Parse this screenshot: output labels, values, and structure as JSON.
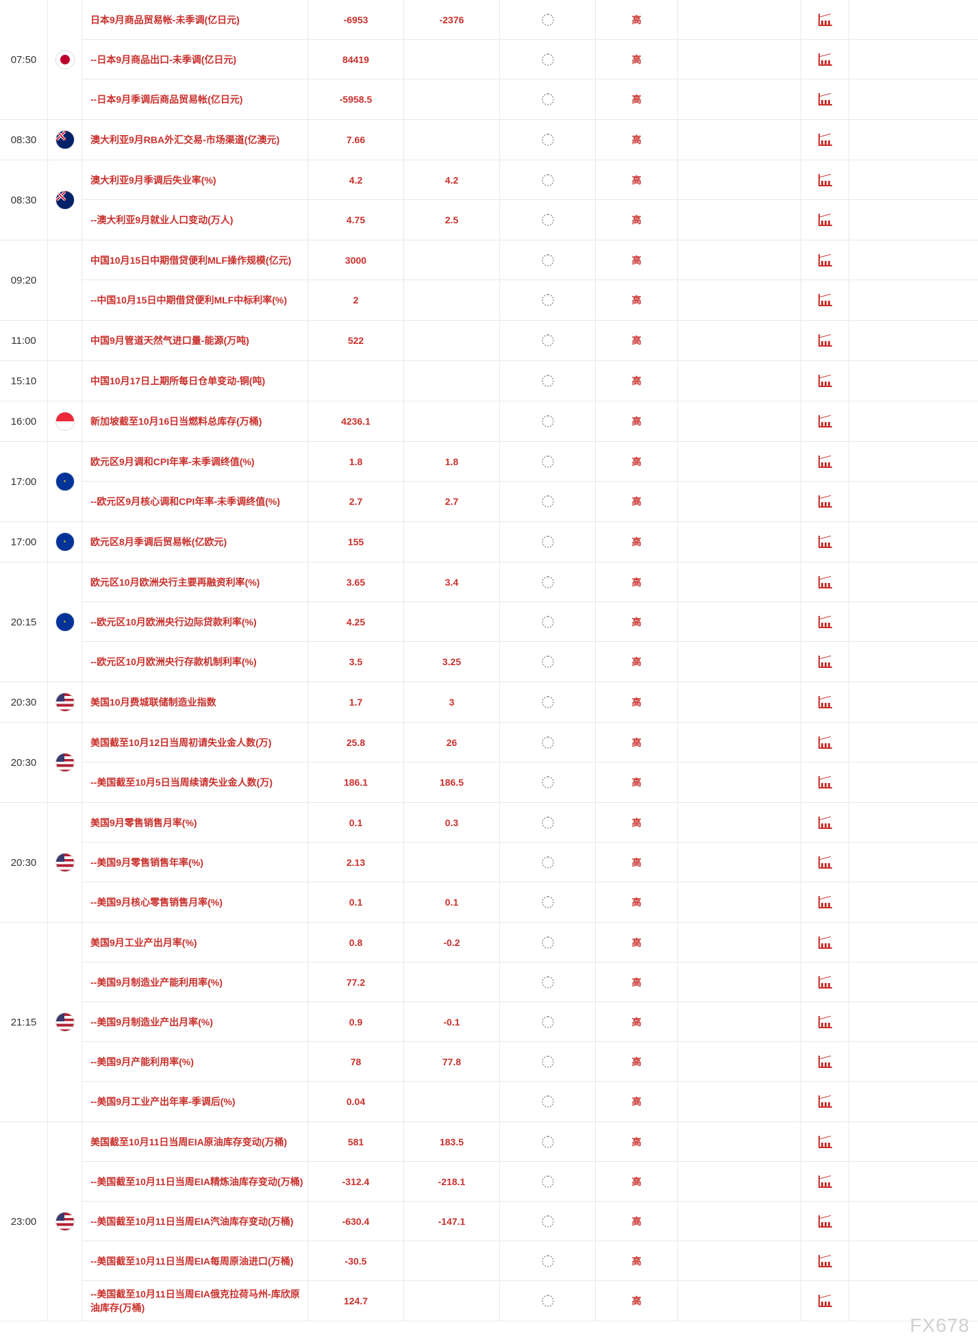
{
  "watermark": "FX678",
  "level_label": "高",
  "groups": [
    {
      "time": "07:50",
      "flag": "jp",
      "rows": [
        {
          "desc": "日本9月商品贸易帐-未季调(亿日元)",
          "v1": "-6953",
          "v2": "-2376"
        },
        {
          "desc": "--日本9月商品出口-未季调(亿日元)",
          "v1": "84419",
          "v2": ""
        },
        {
          "desc": "--日本9月季调后商品贸易帐(亿日元)",
          "v1": "-5958.5",
          "v2": ""
        }
      ]
    },
    {
      "time": "08:30",
      "flag": "au",
      "rows": [
        {
          "desc": "澳大利亚9月RBA外汇交易-市场渠道(亿澳元)",
          "v1": "7.66",
          "v2": ""
        }
      ]
    },
    {
      "time": "08:30",
      "flag": "au",
      "rows": [
        {
          "desc": "澳大利亚9月季调后失业率(%)",
          "v1": "4.2",
          "v2": "4.2"
        },
        {
          "desc": "--澳大利亚9月就业人口变动(万人)",
          "v1": "4.75",
          "v2": "2.5"
        }
      ]
    },
    {
      "time": "09:20",
      "flag": "",
      "rows": [
        {
          "desc": "中国10月15日中期借贷便利MLF操作规模(亿元)",
          "v1": "3000",
          "v2": ""
        },
        {
          "desc": "--中国10月15日中期借贷便利MLF中标利率(%)",
          "v1": "2",
          "v2": ""
        }
      ]
    },
    {
      "time": "11:00",
      "flag": "",
      "rows": [
        {
          "desc": "中国9月管道天然气进口量-能源(万吨)",
          "v1": "522",
          "v2": ""
        }
      ]
    },
    {
      "time": "15:10",
      "flag": "",
      "rows": [
        {
          "desc": "中国10月17日上期所每日仓单变动-铜(吨)",
          "v1": "",
          "v2": ""
        }
      ]
    },
    {
      "time": "16:00",
      "flag": "sg",
      "rows": [
        {
          "desc": "新加坡截至10月16日当燃料总库存(万桶)",
          "v1": "4236.1",
          "v2": ""
        }
      ]
    },
    {
      "time": "17:00",
      "flag": "eu",
      "rows": [
        {
          "desc": "欧元区9月调和CPI年率-未季调终值(%)",
          "v1": "1.8",
          "v2": "1.8"
        },
        {
          "desc": "--欧元区9月核心调和CPI年率-未季调终值(%)",
          "v1": "2.7",
          "v2": "2.7"
        }
      ]
    },
    {
      "time": "17:00",
      "flag": "eu",
      "rows": [
        {
          "desc": "欧元区8月季调后贸易帐(亿欧元)",
          "v1": "155",
          "v2": ""
        }
      ]
    },
    {
      "time": "20:15",
      "flag": "eu",
      "rows": [
        {
          "desc": "欧元区10月欧洲央行主要再融资利率(%)",
          "v1": "3.65",
          "v2": "3.4"
        },
        {
          "desc": "--欧元区10月欧洲央行边际贷款利率(%)",
          "v1": "4.25",
          "v2": ""
        },
        {
          "desc": "--欧元区10月欧洲央行存款机制利率(%)",
          "v1": "3.5",
          "v2": "3.25"
        }
      ]
    },
    {
      "time": "20:30",
      "flag": "us",
      "rows": [
        {
          "desc": "美国10月费城联储制造业指数",
          "v1": "1.7",
          "v2": "3"
        }
      ]
    },
    {
      "time": "20:30",
      "flag": "us",
      "rows": [
        {
          "desc": "美国截至10月12日当周初请失业金人数(万)",
          "v1": "25.8",
          "v2": "26"
        },
        {
          "desc": "--美国截至10月5日当周续请失业金人数(万)",
          "v1": "186.1",
          "v2": "186.5"
        }
      ]
    },
    {
      "time": "20:30",
      "flag": "us",
      "rows": [
        {
          "desc": "美国9月零售销售月率(%)",
          "v1": "0.1",
          "v2": "0.3"
        },
        {
          "desc": "--美国9月零售销售年率(%)",
          "v1": "2.13",
          "v2": ""
        },
        {
          "desc": "--美国9月核心零售销售月率(%)",
          "v1": "0.1",
          "v2": "0.1"
        }
      ]
    },
    {
      "time": "21:15",
      "flag": "us",
      "rows": [
        {
          "desc": "美国9月工业产出月率(%)",
          "v1": "0.8",
          "v2": "-0.2"
        },
        {
          "desc": "--美国9月制造业产能利用率(%)",
          "v1": "77.2",
          "v2": ""
        },
        {
          "desc": "--美国9月制造业产出月率(%)",
          "v1": "0.9",
          "v2": "-0.1"
        },
        {
          "desc": "--美国9月产能利用率(%)",
          "v1": "78",
          "v2": "77.8"
        },
        {
          "desc": "--美国9月工业产出年率-季调后(%)",
          "v1": "0.04",
          "v2": ""
        }
      ]
    },
    {
      "time": "23:00",
      "flag": "us",
      "rows": [
        {
          "desc": "美国截至10月11日当周EIA原油库存变动(万桶)",
          "v1": "581",
          "v2": "183.5"
        },
        {
          "desc": "--美国截至10月11日当周EIA精炼油库存变动(万桶)",
          "v1": "-312.4",
          "v2": "-218.1"
        },
        {
          "desc": "--美国截至10月11日当周EIA汽油库存变动(万桶)",
          "v1": "-630.4",
          "v2": "-147.1"
        },
        {
          "desc": "--美国截至10月11日当周EIA每周原油进口(万桶)",
          "v1": "-30.5",
          "v2": ""
        },
        {
          "desc": "--美国截至10月11日当周EIA俄克拉荷马州-库欣原油库存(万桶)",
          "v1": "124.7",
          "v2": ""
        }
      ]
    }
  ]
}
